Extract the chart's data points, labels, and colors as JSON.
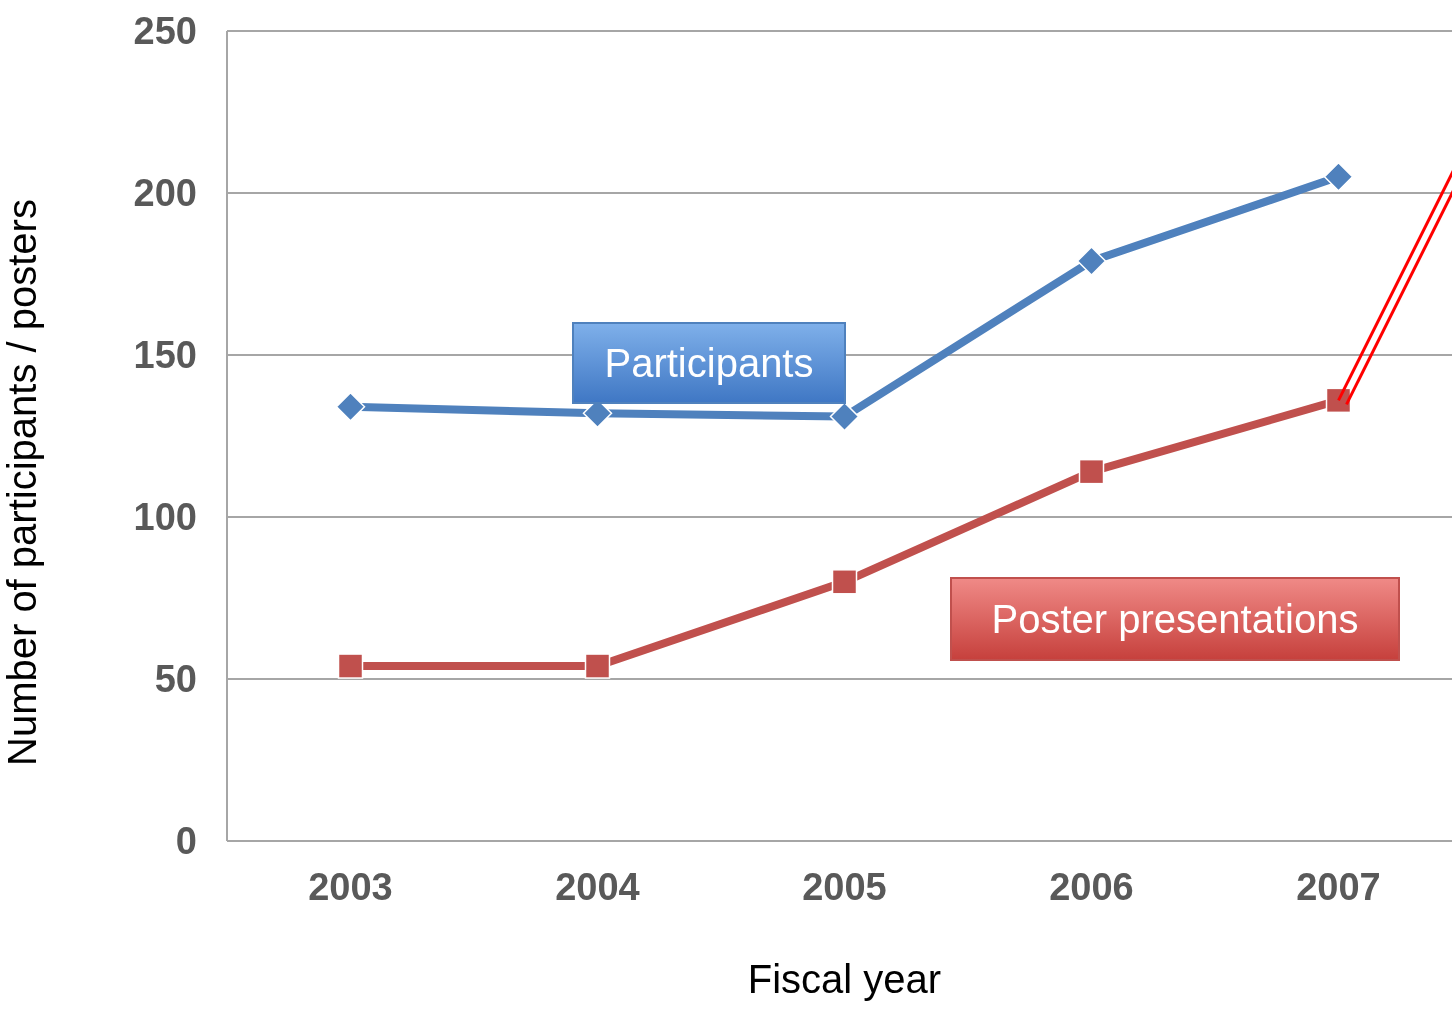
{
  "chart_data": {
    "type": "line",
    "xlabel": "Fiscal year",
    "ylabel": "Number of participants / posters",
    "categories": [
      "2003",
      "2004",
      "2005",
      "2006",
      "2007"
    ],
    "series": [
      {
        "name": "Participants",
        "color": "#4f81bd",
        "marker": "diamond",
        "values": [
          134,
          132,
          131,
          179,
          205
        ]
      },
      {
        "name": "Poster presentations",
        "color": "#c0504d",
        "marker": "square",
        "values": [
          54,
          54,
          80,
          114,
          136
        ]
      }
    ],
    "ylim": [
      0,
      250
    ],
    "yticks": [
      0,
      50,
      100,
      150,
      200,
      250
    ],
    "grid": "y",
    "legend": false,
    "line_style": "solid"
  }
}
